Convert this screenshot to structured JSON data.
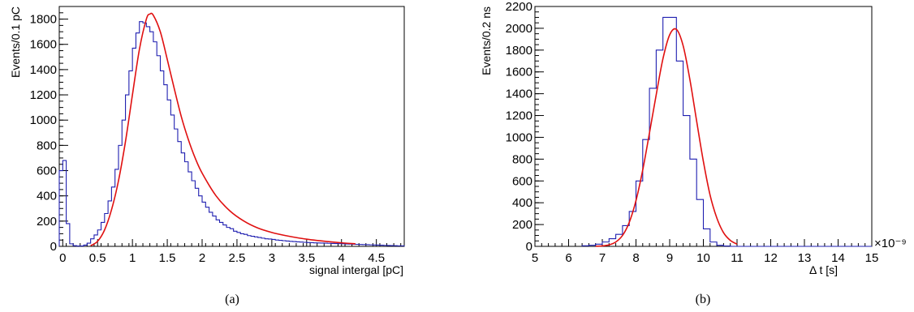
{
  "chart_data": [
    {
      "type": "line",
      "panel_label": "(a)",
      "xlabel": "signal intergal [pC]",
      "ylabel": "Events/0.1 pC",
      "xlim": [
        -0.05,
        4.9
      ],
      "ylim": [
        0,
        1900
      ],
      "x_major_ticks": [
        0,
        0.5,
        1,
        1.5,
        2,
        2.5,
        3,
        3.5,
        4,
        4.5
      ],
      "x_tick_labels": [
        "0",
        "0.5",
        "1",
        "1.5",
        "2",
        "2.5",
        "3",
        "3.5",
        "4",
        "4.5"
      ],
      "y_major_ticks": [
        0,
        200,
        400,
        600,
        800,
        1000,
        1200,
        1400,
        1600,
        1800
      ],
      "y_tick_labels": [
        "0",
        "200",
        "400",
        "600",
        "800",
        "1000",
        "1200",
        "1400",
        "1600",
        "1800"
      ],
      "grid": false,
      "series": [
        {
          "kind": "histogram",
          "color": "#1f1fb0",
          "bin_width": 0.05,
          "x": [
            -0.05,
            0,
            0.05,
            0.1,
            0.15,
            0.2,
            0.25,
            0.3,
            0.35,
            0.4,
            0.45,
            0.5,
            0.55,
            0.6,
            0.65,
            0.7,
            0.75,
            0.8,
            0.85,
            0.9,
            0.95,
            1.0,
            1.05,
            1.1,
            1.15,
            1.2,
            1.25,
            1.3,
            1.35,
            1.4,
            1.45,
            1.5,
            1.55,
            1.6,
            1.65,
            1.7,
            1.75,
            1.8,
            1.85,
            1.9,
            1.95,
            2.0,
            2.05,
            2.1,
            2.15,
            2.2,
            2.25,
            2.3,
            2.35,
            2.4,
            2.45,
            2.5,
            2.55,
            2.6,
            2.65,
            2.7,
            2.75,
            2.8,
            2.85,
            2.9,
            2.95,
            3.0,
            3.05,
            3.1,
            3.15,
            3.2,
            3.25,
            3.3,
            3.35,
            3.4,
            3.45,
            3.5,
            3.55,
            3.6,
            3.65,
            3.7,
            3.75,
            3.8,
            3.85,
            3.9,
            3.95,
            4.0,
            4.05,
            4.1,
            4.15,
            4.2,
            4.25,
            4.3,
            4.35,
            4.4,
            4.45,
            4.5,
            4.55,
            4.6,
            4.65,
            4.7,
            4.75,
            4.8,
            4.85
          ],
          "values": [
            600,
            680,
            180,
            20,
            5,
            3,
            3,
            10,
            25,
            60,
            90,
            130,
            190,
            260,
            360,
            470,
            610,
            800,
            1000,
            1200,
            1390,
            1570,
            1690,
            1780,
            1770,
            1740,
            1700,
            1620,
            1510,
            1390,
            1280,
            1160,
            1040,
            930,
            830,
            740,
            670,
            590,
            520,
            460,
            400,
            350,
            310,
            270,
            240,
            210,
            190,
            170,
            150,
            140,
            120,
            110,
            100,
            95,
            85,
            80,
            75,
            70,
            65,
            60,
            58,
            55,
            50,
            48,
            45,
            42,
            40,
            38,
            36,
            34,
            32,
            30,
            29,
            28,
            27,
            26,
            25,
            24,
            23,
            22,
            21,
            20,
            19,
            18,
            17,
            16,
            15,
            14,
            13,
            12,
            11,
            10,
            9,
            8,
            7,
            6,
            5,
            4,
            4
          ]
        },
        {
          "kind": "fit",
          "color": "#e01010",
          "x": [
            0.4,
            0.5,
            0.6,
            0.7,
            0.8,
            0.9,
            1.0,
            1.1,
            1.2,
            1.25,
            1.3,
            1.4,
            1.5,
            1.6,
            1.7,
            1.8,
            1.9,
            2.0,
            2.2,
            2.4,
            2.6,
            2.8,
            3.0,
            3.2,
            3.4,
            3.6,
            3.8,
            4.0,
            4.2
          ],
          "values": [
            5,
            40,
            130,
            290,
            520,
            830,
            1200,
            1560,
            1800,
            1840,
            1830,
            1700,
            1480,
            1250,
            1030,
            850,
            700,
            580,
            400,
            280,
            200,
            145,
            110,
            85,
            65,
            50,
            38,
            28,
            20
          ]
        }
      ]
    },
    {
      "type": "line",
      "panel_label": "(b)",
      "xlabel": "Δ t   [s]",
      "ylabel": "Events/0.2 ns",
      "x_exponent_label": "×10⁻⁹",
      "xlim": [
        5,
        15
      ],
      "ylim": [
        0,
        2200
      ],
      "x_major_ticks": [
        5,
        6,
        7,
        8,
        9,
        10,
        11,
        12,
        13,
        14,
        15
      ],
      "x_tick_labels": [
        "5",
        "6",
        "7",
        "8",
        "9",
        "10",
        "11",
        "12",
        "13",
        "14",
        "15"
      ],
      "y_major_ticks": [
        0,
        200,
        400,
        600,
        800,
        1000,
        1200,
        1400,
        1600,
        1800,
        2000,
        2200
      ],
      "y_tick_labels": [
        "0",
        "200",
        "400",
        "600",
        "800",
        "1000",
        "1200",
        "1400",
        "1600",
        "1800",
        "2000",
        "2200"
      ],
      "grid": false,
      "series": [
        {
          "kind": "histogram",
          "color": "#1f1fb0",
          "bin_width": 0.2,
          "x": [
            6.4,
            6.6,
            6.8,
            7.0,
            7.2,
            7.4,
            7.6,
            7.8,
            8.0,
            8.2,
            8.4,
            8.6,
            8.8,
            9.0,
            9.2,
            9.4,
            9.6,
            9.8,
            10.0,
            10.2,
            10.4,
            10.6
          ],
          "values": [
            5,
            10,
            20,
            40,
            70,
            110,
            190,
            320,
            600,
            980,
            1450,
            1800,
            2100,
            2100,
            1700,
            1200,
            800,
            430,
            160,
            40,
            10,
            3
          ]
        },
        {
          "kind": "fit",
          "color": "#e01010",
          "x": [
            6.8,
            7.0,
            7.2,
            7.4,
            7.6,
            7.8,
            8.0,
            8.2,
            8.4,
            8.6,
            8.8,
            9.0,
            9.2,
            9.4,
            9.6,
            9.8,
            10.0,
            10.2,
            10.4,
            10.6,
            10.8,
            11.0
          ],
          "values": [
            1,
            4,
            14,
            40,
            100,
            220,
            420,
            700,
            1040,
            1390,
            1720,
            1940,
            1990,
            1840,
            1530,
            1150,
            780,
            470,
            260,
            125,
            55,
            20
          ]
        }
      ]
    }
  ]
}
